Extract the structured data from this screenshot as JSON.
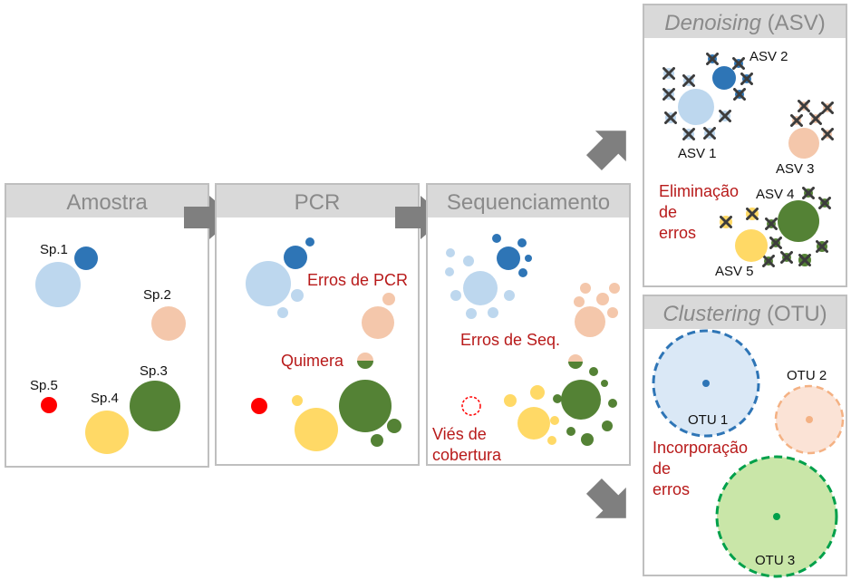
{
  "colors": {
    "sp1": "#2e75b6",
    "sp1_light": "#bdd7ee",
    "sp2": "#f4c7ab",
    "sp3": "#548235",
    "sp4": "#ffd966",
    "sp5": "#ff0000",
    "error_text": "#b81a1a",
    "otu1_fill": "#dae8f6",
    "otu2_fill": "#fbe3d6",
    "otu3_fill": "#c9e6a8",
    "arrow": "#7f7f7f"
  },
  "panels": {
    "amostra": {
      "title": "Amostra",
      "labels": {
        "sp1": "Sp.1",
        "sp2": "Sp.2",
        "sp3": "Sp.3",
        "sp4": "Sp.4",
        "sp5": "Sp.5"
      }
    },
    "pcr": {
      "title": "PCR",
      "errors_label": "Erros de PCR",
      "chimera_label": "Quimera"
    },
    "sequencing": {
      "title": "Sequenciamento",
      "errors_label": "Erros de Seq.",
      "coverage_bias_label": [
        "Viés de",
        "cobertura"
      ]
    },
    "denoising": {
      "title_italic": "Denoising",
      "title_rest": " (ASV)",
      "labels": {
        "asv1": "ASV 1",
        "asv2": "ASV 2",
        "asv3": "ASV 3",
        "asv4": "ASV 4",
        "asv5": "ASV 5"
      },
      "note": [
        "Eliminação",
        "de",
        "erros"
      ]
    },
    "clustering": {
      "title_italic": "Clustering",
      "title_rest": " (OTU)",
      "labels": {
        "otu1": "OTU 1",
        "otu2": "OTU 2",
        "otu3": "OTU 3"
      },
      "note": [
        "Incorporação",
        "de",
        "erros"
      ]
    }
  }
}
